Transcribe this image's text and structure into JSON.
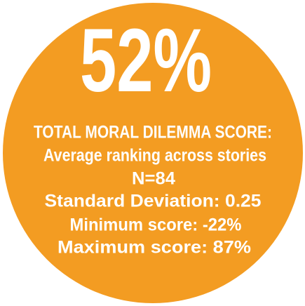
{
  "headline": "52%",
  "title": "TOTAL MORAL DILEMMA SCORE:",
  "lines": [
    "Average ranking across stories",
    "N=84",
    "Standard Deviation: 0.25",
    "Minimum score: -22%",
    "Maximum score: 87%"
  ]
}
